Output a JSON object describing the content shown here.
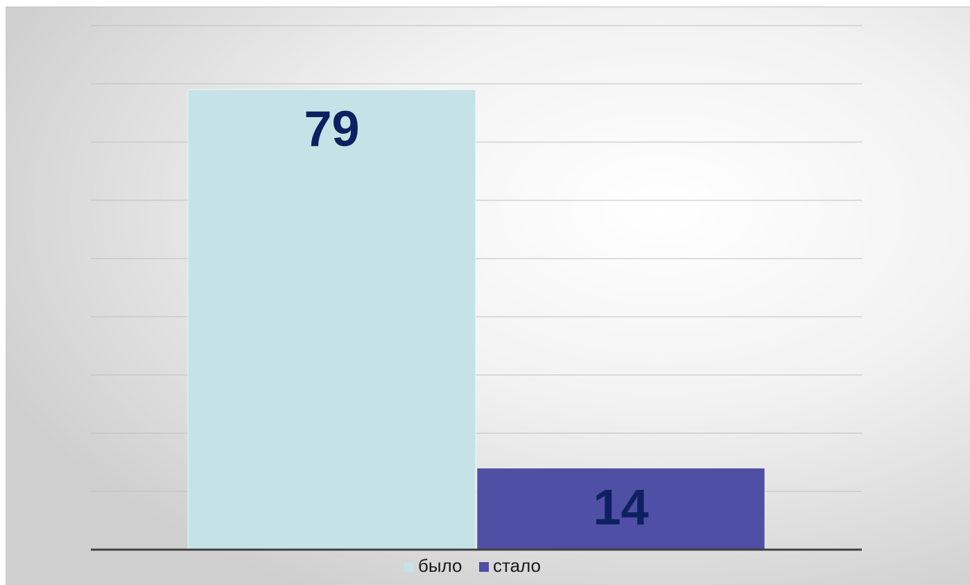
{
  "chart_data": {
    "type": "bar",
    "categories": [
      null
    ],
    "series": [
      {
        "name": "было",
        "color": "#c5e3e6",
        "values": [
          79
        ]
      },
      {
        "name": "стало",
        "color": "#4f4fa6",
        "values": [
          14
        ]
      }
    ],
    "ylim": [
      0,
      90
    ],
    "yticks": [
      0,
      10,
      20,
      30,
      40,
      50,
      60,
      70,
      80,
      90
    ],
    "grid": true,
    "legend": "bottom"
  }
}
